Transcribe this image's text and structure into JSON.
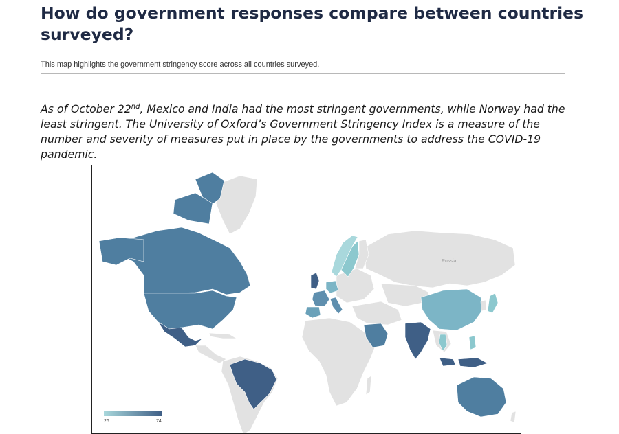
{
  "title": "How do government responses compare between countries surveyed?",
  "subtitle": "This map highlights the government stringency score across all countries surveyed.",
  "body": {
    "part1": "As of October 22",
    "sup": "nd",
    "part2": ", Mexico and India had the most stringent governments, while Norway had the least stringent. The University of Oxford’s Government Stringency Index is a measure of the number and severity of measures put in place by the governments to address the COVID-19 pandemic."
  },
  "map": {
    "region_label": "Russia",
    "colors": {
      "low": "#a9d8dc",
      "high": "#3f5f86",
      "not_surveyed": "#e2e2e2"
    },
    "legend": {
      "min": "26",
      "max": "74"
    },
    "countries_highlighted": [
      "Canada",
      "United States",
      "Mexico",
      "Brazil",
      "Norway",
      "Sweden",
      "United Kingdom",
      "France",
      "Spain",
      "Italy",
      "Germany",
      "Saudi Arabia",
      "India",
      "China",
      "Japan",
      "Thailand",
      "Philippines",
      "Indonesia",
      "Australia"
    ]
  }
}
